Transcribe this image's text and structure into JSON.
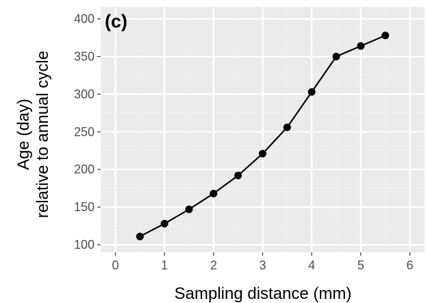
{
  "chart_data": {
    "type": "line",
    "panel_label": "(c)",
    "xlabel": "Sampling distance (mm)",
    "ylabel_lines": [
      "Age (day)",
      "relative to annual cycle"
    ],
    "xlim": [
      -0.3,
      6.3
    ],
    "ylim": [
      90,
      416
    ],
    "x_ticks": [
      0,
      1,
      2,
      3,
      4,
      5,
      6
    ],
    "y_ticks": [
      100,
      150,
      200,
      250,
      300,
      350,
      400
    ],
    "x": [
      0.5,
      1.0,
      1.5,
      2.0,
      2.5,
      3.0,
      3.5,
      4.0,
      4.5,
      5.0,
      5.5
    ],
    "y": [
      111,
      128,
      147,
      168,
      192,
      221,
      256,
      303,
      350,
      364,
      378
    ],
    "grid": true,
    "colors": {
      "panel_background": "#ebebeb",
      "grid_major": "#ffffff",
      "grid_minor": "#f2f2f2",
      "line": "#000000",
      "point": "#000000"
    }
  }
}
